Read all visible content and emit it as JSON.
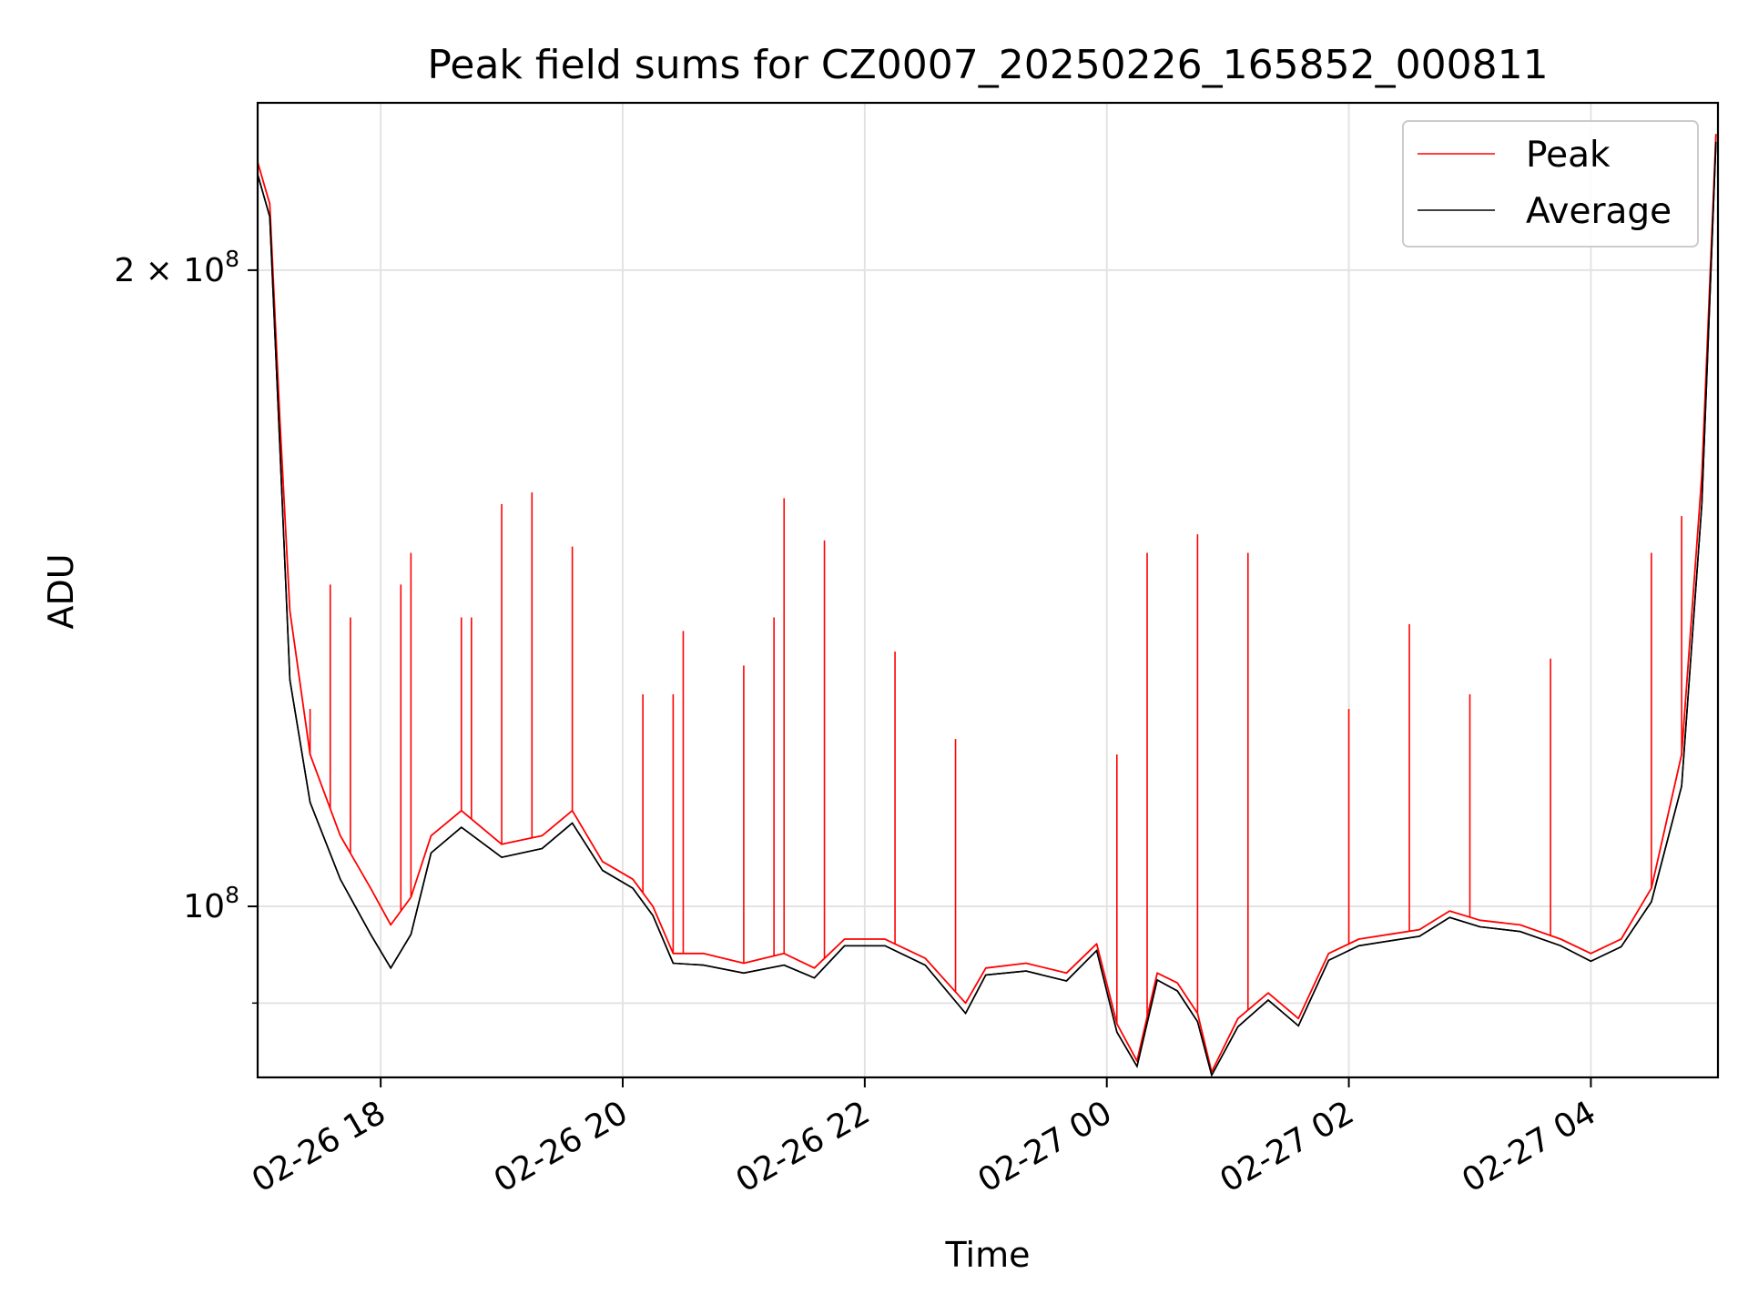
{
  "chart_data": {
    "type": "line",
    "title": "Peak field sums for CZ0007_20250226_165852_000811",
    "xlabel": "Time",
    "ylabel": "ADU",
    "y_scale": "log",
    "xlim": [
      "2025-02-26T16:59",
      "2025-02-27T05:03"
    ],
    "ylim": [
      83000000,
      240000000
    ],
    "x_ticks": [
      {
        "value": "2025-02-26T18:00",
        "label": "02-26 18"
      },
      {
        "value": "2025-02-26T20:00",
        "label": "02-26 20"
      },
      {
        "value": "2025-02-26T22:00",
        "label": "02-26 22"
      },
      {
        "value": "2025-02-27T00:00",
        "label": "02-27 00"
      },
      {
        "value": "2025-02-27T02:00",
        "label": "02-27 02"
      },
      {
        "value": "2025-02-27T04:00",
        "label": "02-27 04"
      }
    ],
    "y_major_ticks": [
      {
        "value": 100000000,
        "label_base": "10",
        "label_exp": "8",
        "label_prefix": ""
      },
      {
        "value": 200000000,
        "label_base": "10",
        "label_exp": "8",
        "label_prefix": "2 × "
      }
    ],
    "y_minor_gridlines": [
      90000000
    ],
    "grid": true,
    "legend": "top-right",
    "series": [
      {
        "name": "Peak",
        "color": "#ff0000",
        "points": [
          [
            "2025-02-26T16:59",
            225000000
          ],
          [
            "2025-02-26T17:05",
            215000000
          ],
          [
            "2025-02-26T17:10",
            170000000
          ],
          [
            "2025-02-26T17:15",
            138000000
          ],
          [
            "2025-02-26T17:25",
            118000000
          ],
          [
            "2025-02-26T17:40",
            108000000
          ],
          [
            "2025-02-26T17:55",
            102000000
          ],
          [
            "2025-02-26T18:05",
            98000000
          ],
          [
            "2025-02-26T18:15",
            101000000
          ],
          [
            "2025-02-26T18:25",
            108000000
          ],
          [
            "2025-02-26T18:40",
            111000000
          ],
          [
            "2025-02-26T19:00",
            107000000
          ],
          [
            "2025-02-26T19:20",
            108000000
          ],
          [
            "2025-02-26T19:35",
            111000000
          ],
          [
            "2025-02-26T19:50",
            105000000
          ],
          [
            "2025-02-26T20:05",
            103000000
          ],
          [
            "2025-02-26T20:15",
            100000000
          ],
          [
            "2025-02-26T20:25",
            95000000
          ],
          [
            "2025-02-26T20:40",
            95000000
          ],
          [
            "2025-02-26T21:00",
            94000000
          ],
          [
            "2025-02-26T21:20",
            95000000
          ],
          [
            "2025-02-26T21:35",
            93500000
          ],
          [
            "2025-02-26T21:50",
            96500000
          ],
          [
            "2025-02-26T22:10",
            96500000
          ],
          [
            "2025-02-26T22:30",
            94500000
          ],
          [
            "2025-02-26T22:50",
            90000000
          ],
          [
            "2025-02-26T23:00",
            93500000
          ],
          [
            "2025-02-26T23:20",
            94000000
          ],
          [
            "2025-02-26T23:40",
            93000000
          ],
          [
            "2025-02-26T23:55",
            96000000
          ],
          [
            "2025-02-27T00:05",
            88000000
          ],
          [
            "2025-02-27T00:15",
            84500000
          ],
          [
            "2025-02-27T00:25",
            93000000
          ],
          [
            "2025-02-27T00:35",
            92000000
          ],
          [
            "2025-02-27T00:45",
            89000000
          ],
          [
            "2025-02-27T00:52",
            83500000
          ],
          [
            "2025-02-27T01:05",
            88500000
          ],
          [
            "2025-02-27T01:20",
            91000000
          ],
          [
            "2025-02-27T01:35",
            88500000
          ],
          [
            "2025-02-27T01:50",
            95000000
          ],
          [
            "2025-02-27T02:05",
            96500000
          ],
          [
            "2025-02-27T02:20",
            97000000
          ],
          [
            "2025-02-27T02:35",
            97500000
          ],
          [
            "2025-02-27T02:50",
            99500000
          ],
          [
            "2025-02-27T03:05",
            98500000
          ],
          [
            "2025-02-27T03:25",
            98000000
          ],
          [
            "2025-02-27T03:45",
            96500000
          ],
          [
            "2025-02-27T04:00",
            95000000
          ],
          [
            "2025-02-27T04:15",
            96500000
          ],
          [
            "2025-02-27T04:30",
            102000000
          ],
          [
            "2025-02-27T04:45",
            118000000
          ],
          [
            "2025-02-27T04:55",
            160000000
          ],
          [
            "2025-02-27T05:02",
            232000000
          ]
        ]
      },
      {
        "name": "Average",
        "color": "#000000",
        "points": [
          [
            "2025-02-26T16:59",
            222000000
          ],
          [
            "2025-02-26T17:05",
            212000000
          ],
          [
            "2025-02-26T17:10",
            165000000
          ],
          [
            "2025-02-26T17:15",
            128000000
          ],
          [
            "2025-02-26T17:25",
            112000000
          ],
          [
            "2025-02-26T17:40",
            103000000
          ],
          [
            "2025-02-26T17:55",
            97000000
          ],
          [
            "2025-02-26T18:05",
            93500000
          ],
          [
            "2025-02-26T18:15",
            97000000
          ],
          [
            "2025-02-26T18:25",
            106000000
          ],
          [
            "2025-02-26T18:40",
            109000000
          ],
          [
            "2025-02-26T19:00",
            105500000
          ],
          [
            "2025-02-26T19:20",
            106500000
          ],
          [
            "2025-02-26T19:35",
            109500000
          ],
          [
            "2025-02-26T19:50",
            104000000
          ],
          [
            "2025-02-26T20:05",
            102000000
          ],
          [
            "2025-02-26T20:15",
            99000000
          ],
          [
            "2025-02-26T20:25",
            94000000
          ],
          [
            "2025-02-26T20:40",
            93800000
          ],
          [
            "2025-02-26T21:00",
            93000000
          ],
          [
            "2025-02-26T21:20",
            93800000
          ],
          [
            "2025-02-26T21:35",
            92500000
          ],
          [
            "2025-02-26T21:50",
            95800000
          ],
          [
            "2025-02-26T22:10",
            95800000
          ],
          [
            "2025-02-26T22:30",
            93800000
          ],
          [
            "2025-02-26T22:50",
            89000000
          ],
          [
            "2025-02-26T23:00",
            92800000
          ],
          [
            "2025-02-26T23:20",
            93200000
          ],
          [
            "2025-02-26T23:40",
            92200000
          ],
          [
            "2025-02-26T23:55",
            95300000
          ],
          [
            "2025-02-27T00:05",
            87200000
          ],
          [
            "2025-02-27T00:15",
            84000000
          ],
          [
            "2025-02-27T00:25",
            92300000
          ],
          [
            "2025-02-27T00:35",
            91200000
          ],
          [
            "2025-02-27T00:45",
            88200000
          ],
          [
            "2025-02-27T00:52",
            83200000
          ],
          [
            "2025-02-27T01:05",
            87700000
          ],
          [
            "2025-02-27T01:20",
            90300000
          ],
          [
            "2025-02-27T01:35",
            87800000
          ],
          [
            "2025-02-27T01:50",
            94300000
          ],
          [
            "2025-02-27T02:05",
            95800000
          ],
          [
            "2025-02-27T02:20",
            96300000
          ],
          [
            "2025-02-27T02:35",
            96800000
          ],
          [
            "2025-02-27T02:50",
            98800000
          ],
          [
            "2025-02-27T03:05",
            97800000
          ],
          [
            "2025-02-27T03:25",
            97300000
          ],
          [
            "2025-02-27T03:45",
            95800000
          ],
          [
            "2025-02-27T04:00",
            94200000
          ],
          [
            "2025-02-27T04:15",
            95700000
          ],
          [
            "2025-02-27T04:30",
            100500000
          ],
          [
            "2025-02-27T04:45",
            114000000
          ],
          [
            "2025-02-27T04:55",
            155000000
          ],
          [
            "2025-02-27T05:02",
            230000000
          ]
        ]
      }
    ],
    "peak_spikes": [
      [
        "2025-02-26T17:25",
        124000000
      ],
      [
        "2025-02-26T17:35",
        142000000
      ],
      [
        "2025-02-26T17:45",
        137000000
      ],
      [
        "2025-02-26T18:10",
        142000000
      ],
      [
        "2025-02-26T18:15",
        147000000
      ],
      [
        "2025-02-26T18:40",
        137000000
      ],
      [
        "2025-02-26T18:45",
        137000000
      ],
      [
        "2025-02-26T19:00",
        155000000
      ],
      [
        "2025-02-26T19:15",
        157000000
      ],
      [
        "2025-02-26T19:35",
        148000000
      ],
      [
        "2025-02-26T20:10",
        126000000
      ],
      [
        "2025-02-26T20:25",
        126000000
      ],
      [
        "2025-02-26T20:30",
        135000000
      ],
      [
        "2025-02-26T21:00",
        130000000
      ],
      [
        "2025-02-26T21:15",
        137000000
      ],
      [
        "2025-02-26T21:20",
        156000000
      ],
      [
        "2025-02-26T21:40",
        149000000
      ],
      [
        "2025-02-26T22:15",
        132000000
      ],
      [
        "2025-02-26T22:45",
        120000000
      ],
      [
        "2025-02-27T00:05",
        118000000
      ],
      [
        "2025-02-27T00:20",
        147000000
      ],
      [
        "2025-02-27T00:45",
        150000000
      ],
      [
        "2025-02-27T01:10",
        147000000
      ],
      [
        "2025-02-27T02:00",
        124000000
      ],
      [
        "2025-02-27T02:30",
        136000000
      ],
      [
        "2025-02-27T03:00",
        126000000
      ],
      [
        "2025-02-27T03:40",
        131000000
      ],
      [
        "2025-02-27T04:30",
        147000000
      ],
      [
        "2025-02-27T04:45",
        153000000
      ]
    ]
  }
}
